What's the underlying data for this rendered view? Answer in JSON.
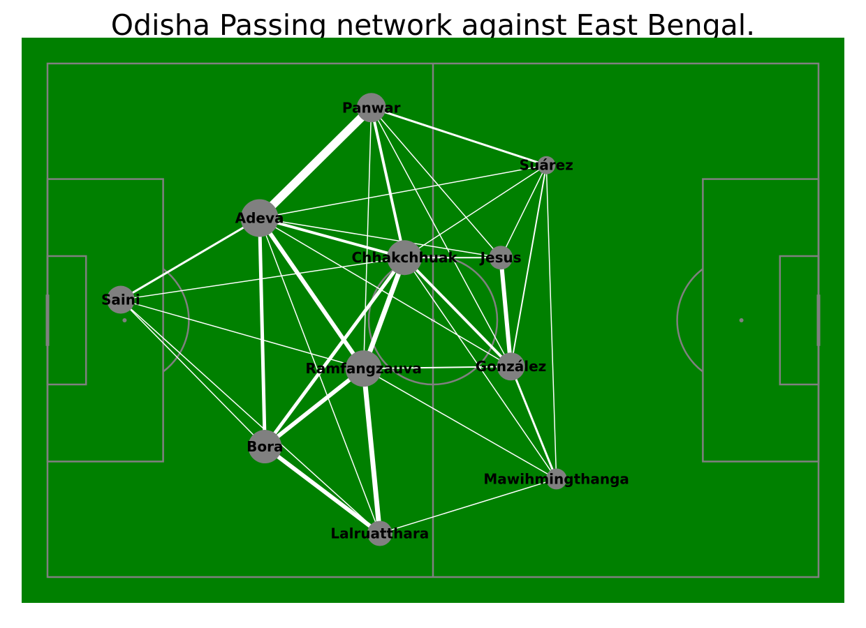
{
  "chart_data": {
    "type": "network",
    "title": "Odisha Passing network against East Bengal.",
    "colors": {
      "pitch": "#008000",
      "lines": "#808080",
      "node": "#808080",
      "edge": "#ffffff",
      "label": "#000000"
    },
    "nodes": [
      {
        "id": "Panwar",
        "label": "Panwar",
        "x": 42.0,
        "y": 91.4,
        "size": 21
      },
      {
        "id": "Suarez",
        "label": "Suárez",
        "x": 64.7,
        "y": 80.2,
        "size": 13
      },
      {
        "id": "Adeva",
        "label": "Adeva",
        "x": 27.5,
        "y": 69.9,
        "size": 27
      },
      {
        "id": "Chhakchhuak",
        "label": "Chhakchhuak",
        "x": 46.3,
        "y": 62.2,
        "size": 25
      },
      {
        "id": "Jesus",
        "label": "Jesus",
        "x": 58.8,
        "y": 62.2,
        "size": 17
      },
      {
        "id": "Saini",
        "label": "Saini",
        "x": 9.5,
        "y": 54.0,
        "size": 20
      },
      {
        "id": "Ramfangzauva",
        "label": "Ramfangzauva",
        "x": 41.0,
        "y": 40.6,
        "size": 26
      },
      {
        "id": "Gonzalez",
        "label": "González",
        "x": 60.1,
        "y": 41.0,
        "size": 20
      },
      {
        "id": "Bora",
        "label": "Bora",
        "x": 28.2,
        "y": 25.4,
        "size": 24
      },
      {
        "id": "Mawihmingthanga",
        "label": "Mawihmingthanga",
        "x": 66.0,
        "y": 19.1,
        "size": 15
      },
      {
        "id": "Lalruatthara",
        "label": "Lalruatthara",
        "x": 43.1,
        "y": 8.5,
        "size": 18
      }
    ],
    "edges": [
      {
        "from": "Panwar",
        "to": "Adeva",
        "weight": 12
      },
      {
        "from": "Panwar",
        "to": "Suarez",
        "weight": 3
      },
      {
        "from": "Panwar",
        "to": "Chhakchhuak",
        "weight": 4
      },
      {
        "from": "Panwar",
        "to": "Jesus",
        "weight": 1.5
      },
      {
        "from": "Panwar",
        "to": "Gonzalez",
        "weight": 1.5
      },
      {
        "from": "Panwar",
        "to": "Ramfangzauva",
        "weight": 1.5
      },
      {
        "from": "Suarez",
        "to": "Adeva",
        "weight": 1.5
      },
      {
        "from": "Suarez",
        "to": "Chhakchhuak",
        "weight": 1.5
      },
      {
        "from": "Suarez",
        "to": "Jesus",
        "weight": 1.5
      },
      {
        "from": "Suarez",
        "to": "Gonzalez",
        "weight": 2
      },
      {
        "from": "Suarez",
        "to": "Mawihmingthanga",
        "weight": 1.5
      },
      {
        "from": "Adeva",
        "to": "Saini",
        "weight": 3
      },
      {
        "from": "Adeva",
        "to": "Chhakchhuak",
        "weight": 4
      },
      {
        "from": "Adeva",
        "to": "Jesus",
        "weight": 1.5
      },
      {
        "from": "Adeva",
        "to": "Ramfangzauva",
        "weight": 6
      },
      {
        "from": "Adeva",
        "to": "Bora",
        "weight": 5
      },
      {
        "from": "Adeva",
        "to": "Gonzalez",
        "weight": 1.5
      },
      {
        "from": "Adeva",
        "to": "Lalruatthara",
        "weight": 1.5
      },
      {
        "from": "Chhakchhuak",
        "to": "Jesus",
        "weight": 2
      },
      {
        "from": "Chhakchhuak",
        "to": "Saini",
        "weight": 1.5
      },
      {
        "from": "Chhakchhuak",
        "to": "Ramfangzauva",
        "weight": 7
      },
      {
        "from": "Chhakchhuak",
        "to": "Bora",
        "weight": 5
      },
      {
        "from": "Chhakchhuak",
        "to": "Gonzalez",
        "weight": 4
      },
      {
        "from": "Chhakchhuak",
        "to": "Mawihmingthanga",
        "weight": 1.5
      },
      {
        "from": "Jesus",
        "to": "Gonzalez",
        "weight": 6
      },
      {
        "from": "Saini",
        "to": "Ramfangzauva",
        "weight": 1.5
      },
      {
        "from": "Saini",
        "to": "Bora",
        "weight": 1.5
      },
      {
        "from": "Saini",
        "to": "Lalruatthara",
        "weight": 1.5
      },
      {
        "from": "Ramfangzauva",
        "to": "Gonzalez",
        "weight": 2
      },
      {
        "from": "Ramfangzauva",
        "to": "Bora",
        "weight": 6
      },
      {
        "from": "Ramfangzauva",
        "to": "Lalruatthara",
        "weight": 7
      },
      {
        "from": "Ramfangzauva",
        "to": "Mawihmingthanga",
        "weight": 1.5
      },
      {
        "from": "Gonzalez",
        "to": "Mawihmingthanga",
        "weight": 3
      },
      {
        "from": "Bora",
        "to": "Lalruatthara",
        "weight": 6
      },
      {
        "from": "Lalruatthara",
        "to": "Mawihmingthanga",
        "weight": 1.5
      }
    ]
  }
}
